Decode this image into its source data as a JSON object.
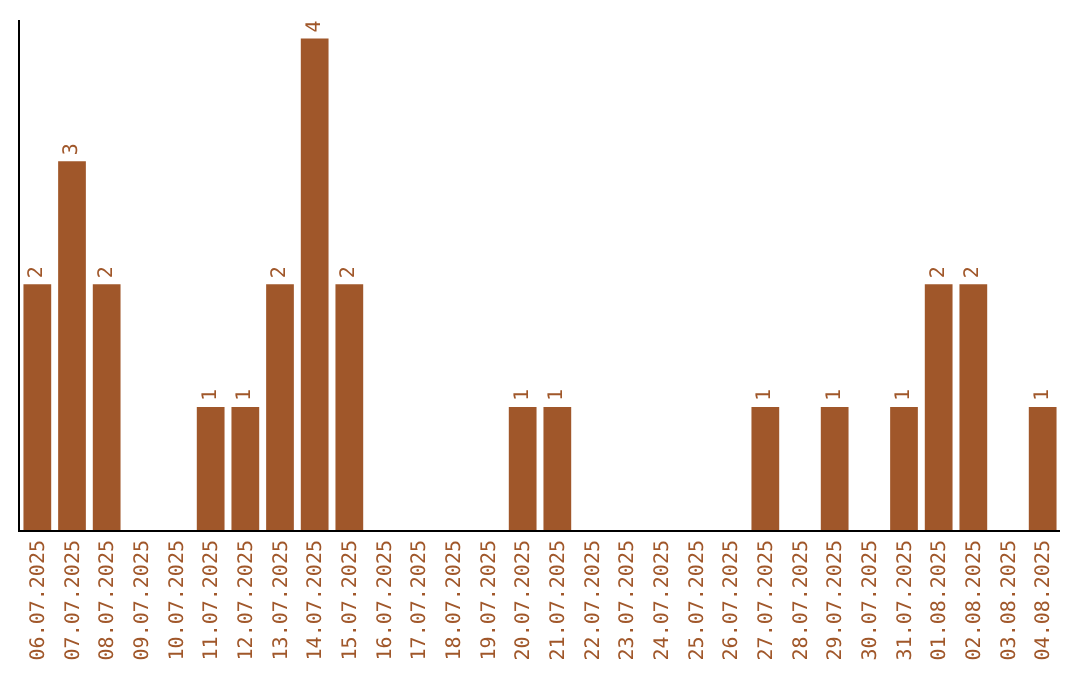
{
  "chart_data": {
    "type": "bar",
    "categories": [
      "06.07.2025",
      "07.07.2025",
      "08.07.2025",
      "09.07.2025",
      "10.07.2025",
      "11.07.2025",
      "12.07.2025",
      "13.07.2025",
      "14.07.2025",
      "15.07.2025",
      "16.07.2025",
      "17.07.2025",
      "18.07.2025",
      "19.07.2025",
      "20.07.2025",
      "21.07.2025",
      "22.07.2025",
      "23.07.2025",
      "24.07.2025",
      "25.07.2025",
      "26.07.2025",
      "27.07.2025",
      "28.07.2025",
      "29.07.2025",
      "30.07.2025",
      "31.07.2025",
      "01.08.2025",
      "02.08.2025",
      "03.08.2025",
      "04.08.2025"
    ],
    "values": [
      2,
      3,
      2,
      0,
      0,
      1,
      1,
      2,
      4,
      2,
      0,
      0,
      0,
      0,
      1,
      1,
      0,
      0,
      0,
      0,
      0,
      1,
      0,
      1,
      0,
      1,
      2,
      2,
      0,
      1
    ],
    "value_labels": [
      "2",
      "3",
      "2",
      null,
      null,
      "1",
      "1",
      "2",
      "4",
      "2",
      null,
      null,
      null,
      null,
      "1",
      "1",
      null,
      null,
      null,
      null,
      null,
      "1",
      null,
      "1",
      null,
      "1",
      "2",
      "2",
      null,
      "1"
    ],
    "color": "#a0572a",
    "ylim": [
      0,
      4.15
    ],
    "tick_labels": "x",
    "legend": false
  }
}
